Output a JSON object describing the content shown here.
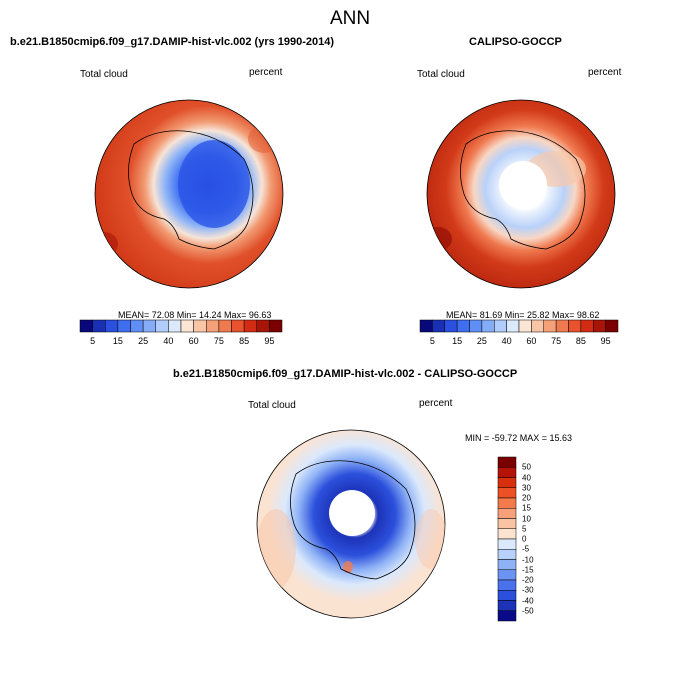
{
  "title": "ANN",
  "panels": [
    {
      "title": "b.e21.B1850cmip6.f09_g17.DAMIP-hist-vlc.002 (yrs 1990-2014)",
      "left_label": "Total cloud",
      "right_label": "percent",
      "stats": "MEAN=  72.08  Min=  14.24  Max=  96.63"
    },
    {
      "title": "CALIPSO-GOCCP",
      "left_label": "Total cloud",
      "right_label": "percent",
      "stats": "MEAN=  81.69  Min=  25.82  Max=  98.62"
    },
    {
      "title": "b.e21.B1850cmip6.f09_g17.DAMIP-hist-vlc.002 - CALIPSO-GOCCP",
      "left_label": "Total cloud",
      "right_label": "percent",
      "stats": "MIN = -59.72 MAX =  15.63"
    }
  ],
  "colorbar_top": {
    "colors": [
      "#08087a",
      "#1a2fb4",
      "#2b50e0",
      "#3f6ef0",
      "#5f8ff5",
      "#85acf7",
      "#b0ccfa",
      "#dbe9fc",
      "#fbe6d6",
      "#f8c6a6",
      "#f4a078",
      "#f07a50",
      "#e8522c",
      "#d22d14",
      "#a81408",
      "#7a0000"
    ],
    "labels": [
      "5",
      "15",
      "25",
      "40",
      "60",
      "75",
      "85",
      "95"
    ]
  },
  "colorbar_diff": {
    "colors": [
      "#7a0000",
      "#b51208",
      "#d8300e",
      "#ee5026",
      "#f47a4c",
      "#f7a07a",
      "#f9c3a4",
      "#fbe3d2",
      "#dbe9fc",
      "#b6d1fa",
      "#8fb2f6",
      "#6a93f2",
      "#4a72ec",
      "#2c50dc",
      "#1c33b8",
      "#0a0a88"
    ],
    "labels": [
      "50",
      "40",
      "30",
      "20",
      "15",
      "10",
      "5",
      "0",
      "-5",
      "-10",
      "-15",
      "-20",
      "-30",
      "-40",
      "-50"
    ]
  }
}
